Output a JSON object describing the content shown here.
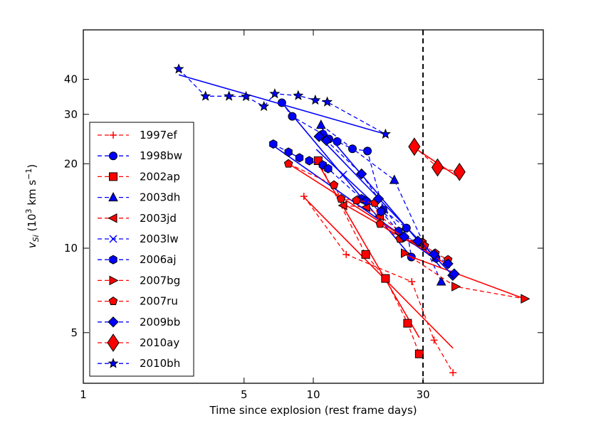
{
  "chart_data": {
    "type": "scatter",
    "xscale": "log",
    "yscale": "log",
    "xlim": [
      1,
      100
    ],
    "ylim": [
      3.3,
      60
    ],
    "xlabel": "Time since explosion (rest frame days)",
    "ylabel_main": "v",
    "ylabel_sub": "Si",
    "ylabel_unit_pre": " (10",
    "ylabel_unit_sup": "3",
    "ylabel_unit_mid": " km s",
    "ylabel_unit_sup2": "−1",
    "ylabel_unit_post": ")",
    "xticks": [
      1,
      5,
      10,
      30
    ],
    "xtick_labels": [
      "1",
      "5",
      "10",
      "30"
    ],
    "yticks": [
      5,
      10,
      20,
      30,
      40
    ],
    "ytick_labels": [
      "5",
      "10",
      "20",
      "30",
      "40"
    ],
    "vline_x": 30,
    "legend_position": "left",
    "series": [
      {
        "name": "1997ef",
        "label": "1997ef",
        "color": "#ff0000",
        "marker": "plus",
        "points": [
          [
            9.1,
            15.3
          ],
          [
            13.9,
            9.5
          ],
          [
            26.8,
            7.6
          ],
          [
            33.5,
            4.7
          ],
          [
            40.5,
            3.6
          ]
        ],
        "fit": [
          [
            9.1,
            15.2
          ],
          [
            40.5,
            4.4
          ]
        ]
      },
      {
        "name": "1998bw",
        "label": "1998bw",
        "color": "#0000ff",
        "marker": "circle",
        "points": [
          [
            7.3,
            33
          ],
          [
            8.1,
            29.5
          ],
          [
            11,
            25.5
          ],
          [
            11.7,
            24.5
          ],
          [
            12.7,
            24
          ],
          [
            14.8,
            22.6
          ],
          [
            17.2,
            22.2
          ],
          [
            20.1,
            13.7
          ],
          [
            25.4,
            11.8
          ],
          [
            26.7,
            9.3
          ]
        ],
        "fit": [
          [
            7.3,
            33
          ],
          [
            26.7,
            9.3
          ]
        ]
      },
      {
        "name": "2002ap",
        "label": "2002ap",
        "color": "#ff0000",
        "marker": "square",
        "points": [
          [
            10.5,
            20.5
          ],
          [
            16.9,
            9.5
          ],
          [
            20.6,
            7.8
          ],
          [
            25.7,
            5.4
          ],
          [
            28.9,
            4.2
          ]
        ],
        "fit": [
          [
            10.5,
            20
          ],
          [
            28.9,
            4.8
          ]
        ]
      },
      {
        "name": "2003dh",
        "label": "2003dh",
        "color": "#0000ff",
        "marker": "triangle-up",
        "points": [
          [
            10.8,
            27.5
          ],
          [
            22.5,
            17.5
          ],
          [
            36,
            7.6
          ]
        ],
        "fit": [
          [
            10.8,
            27
          ],
          [
            36,
            8.5
          ]
        ]
      },
      {
        "name": "2003jd",
        "label": "2003jd",
        "color": "#ff0000",
        "marker": "triangle-left",
        "points": [
          [
            13.5,
            14.2
          ],
          [
            17,
            14
          ],
          [
            19.5,
            13
          ],
          [
            27.5,
            10.5
          ]
        ],
        "fit": [
          [
            13.5,
            14.4
          ],
          [
            27.5,
            10.3
          ]
        ]
      },
      {
        "name": "2003lw",
        "label": "2003lw",
        "color": "#0000ff",
        "marker": "x",
        "points": [
          [
            13.5,
            18.3
          ]
        ],
        "fit": [
          [
            10.3,
            22.5
          ],
          [
            21,
            13
          ]
        ]
      },
      {
        "name": "2006aj",
        "label": "2006aj",
        "color": "#0000ff",
        "marker": "hexagon",
        "points": [
          [
            6.7,
            23.5
          ],
          [
            7.8,
            22
          ],
          [
            8.7,
            21
          ],
          [
            9.6,
            20.5
          ],
          [
            11,
            19.8
          ],
          [
            11.6,
            19.2
          ],
          [
            16.2,
            15
          ],
          [
            17,
            14.7
          ],
          [
            19.7,
            13.5
          ],
          [
            23.5,
            11.5
          ],
          [
            24.6,
            10.9
          ],
          [
            29,
            10.5
          ],
          [
            34.2,
            9.2
          ]
        ],
        "fit": [
          [
            6.7,
            23.2
          ],
          [
            34.2,
            9.1
          ]
        ]
      },
      {
        "name": "2007bg",
        "label": "2007bg",
        "color": "#ff0000",
        "marker": "triangle-right",
        "points": [
          [
            25,
            9.6
          ],
          [
            41.5,
            7.3
          ],
          [
            83,
            6.6
          ]
        ],
        "fit": [
          [
            25,
            9.5
          ],
          [
            83,
            6.6
          ]
        ]
      },
      {
        "name": "2007ru",
        "label": "2007ru",
        "color": "#ff0000",
        "marker": "pentagon",
        "points": [
          [
            7.8,
            20
          ],
          [
            12.3,
            16.8
          ],
          [
            13.2,
            15
          ],
          [
            15.4,
            14.8
          ],
          [
            18.5,
            14.5
          ],
          [
            19.5,
            12.2
          ],
          [
            23.8,
            10.8
          ],
          [
            29.8,
            10.5
          ],
          [
            30.5,
            10.2
          ],
          [
            33.9,
            9.6
          ],
          [
            38.5,
            9.1
          ]
        ],
        "fit": [
          [
            7.8,
            20
          ],
          [
            38.5,
            8.7
          ]
        ]
      },
      {
        "name": "2009bb",
        "label": "2009bb",
        "color": "#0000ff",
        "marker": "diamond",
        "points": [
          [
            10.6,
            25
          ],
          [
            11.4,
            24.2
          ],
          [
            16.2,
            18.4
          ],
          [
            19.2,
            15
          ],
          [
            24.8,
            11
          ],
          [
            28.5,
            10.6
          ],
          [
            33.5,
            9.5
          ],
          [
            38.5,
            8.8
          ],
          [
            40.4,
            8
          ],
          [
            41,
            8.1
          ]
        ],
        "fit": [
          [
            10.6,
            25
          ],
          [
            41,
            7.9
          ]
        ]
      },
      {
        "name": "2010ay",
        "label": "2010ay",
        "color": "#ff0000",
        "marker": "thin-diamond",
        "points": [
          [
            27.5,
            23
          ],
          [
            34.7,
            19.4
          ],
          [
            43.2,
            18.7
          ]
        ],
        "fit": [
          [
            27.5,
            22.8
          ],
          [
            43.2,
            17.8
          ]
        ]
      },
      {
        "name": "2010bh",
        "label": "2010bh",
        "color": "#0000ff",
        "marker": "star",
        "points": [
          [
            2.6,
            43.5
          ],
          [
            3.4,
            34.8
          ],
          [
            4.3,
            34.8
          ],
          [
            5.1,
            34.7
          ],
          [
            6.1,
            32
          ],
          [
            6.8,
            35.5
          ],
          [
            8.6,
            35
          ],
          [
            10.2,
            33.7
          ],
          [
            11.5,
            33.2
          ],
          [
            20.6,
            25.5
          ]
        ],
        "fit": [
          [
            2.6,
            41.5
          ],
          [
            20.6,
            25.5
          ]
        ]
      }
    ]
  }
}
